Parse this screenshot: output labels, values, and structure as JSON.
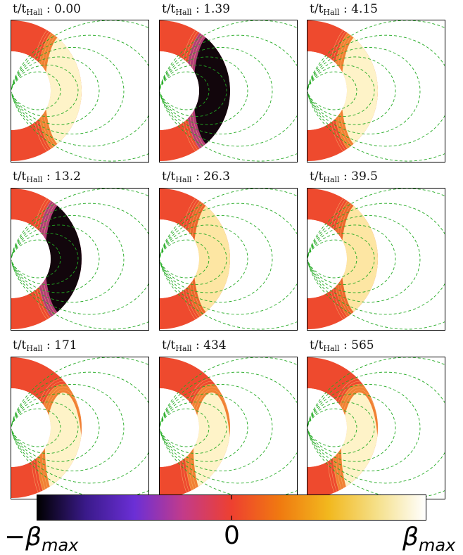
{
  "panels": [
    {
      "label": "t/t",
      "sub": "Hall",
      "time": "0.00",
      "theme": "hot"
    },
    {
      "label": "t/t",
      "sub": "Hall",
      "time": "1.39",
      "theme": "cold"
    },
    {
      "label": "t/t",
      "sub": "Hall",
      "time": "4.15",
      "theme": "hot"
    },
    {
      "label": "t/t",
      "sub": "Hall",
      "time": "13.2",
      "theme": "cold"
    },
    {
      "label": "t/t",
      "sub": "Hall",
      "time": "26.3",
      "theme": "mixed"
    },
    {
      "label": "t/t",
      "sub": "Hall",
      "time": "39.5",
      "theme": "mixed"
    },
    {
      "label": "t/t",
      "sub": "Hall",
      "time": "171",
      "theme": "hot"
    },
    {
      "label": "t/t",
      "sub": "Hall",
      "time": "434",
      "theme": "hot"
    },
    {
      "label": "t/t",
      "sub": "Hall",
      "time": "565",
      "theme": "hot"
    }
  ],
  "colorbar": {
    "min_symbol": "β",
    "min_sub": "max",
    "min_sign": "−",
    "mid_label": "0",
    "max_symbol": "β",
    "max_sub": "max",
    "stops": [
      "#000000",
      "#3a1a8a",
      "#6b2fd6",
      "#c23b8a",
      "#ee4030",
      "#f07a10",
      "#f2b81e",
      "#f5e08a",
      "#ffffff"
    ]
  },
  "colors": {
    "background_field": "#ee4a2e",
    "field_lines": "#22aa22",
    "contours": "#f6c07a"
  }
}
